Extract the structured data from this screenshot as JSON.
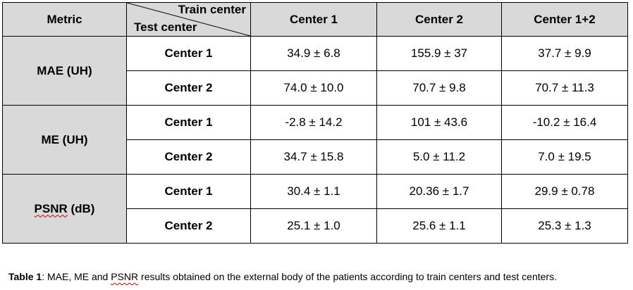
{
  "table": {
    "header": {
      "metric": "Metric",
      "train_center": "Train center",
      "test_center": "Test center",
      "columns": [
        "Center 1",
        "Center 2",
        "Center 1+2"
      ]
    },
    "groups": [
      {
        "metric": "MAE (UH)",
        "rows": [
          {
            "test": "Center 1",
            "values": [
              "34.9 ± 6.8",
              "155.9 ± 37",
              "37.7 ± 9.9"
            ]
          },
          {
            "test": "Center 2",
            "values": [
              "74.0 ± 10.0",
              "70.7 ± 9.8",
              "70.7 ± 11.3"
            ]
          }
        ]
      },
      {
        "metric": "ME (UH)",
        "rows": [
          {
            "test": "Center 1",
            "values": [
              "-2.8 ± 14.2",
              "101 ± 43.6",
              "-10.2 ± 16.4"
            ]
          },
          {
            "test": "Center 2",
            "values": [
              "34.7 ± 15.8",
              "5.0 ± 11.2",
              "7.0 ± 19.5"
            ]
          }
        ]
      },
      {
        "metric_prefix": "PSNR",
        "metric_suffix": " (dB)",
        "rows": [
          {
            "test": "Center 1",
            "values": [
              "30.4 ± 1.1",
              "20.36 ± 1.7",
              "29.9 ± 0.78"
            ]
          },
          {
            "test": "Center 2",
            "values": [
              "25.1 ± 1.0",
              "25.6 ± 1.1",
              "25.3 ± 1.3"
            ]
          }
        ]
      }
    ]
  },
  "caption": {
    "label": "Table 1",
    "text_before": ": MAE, ME and ",
    "psnr": "PSNR",
    "text_after": " results obtained on the external body of the patients according to train centers and test centers."
  }
}
